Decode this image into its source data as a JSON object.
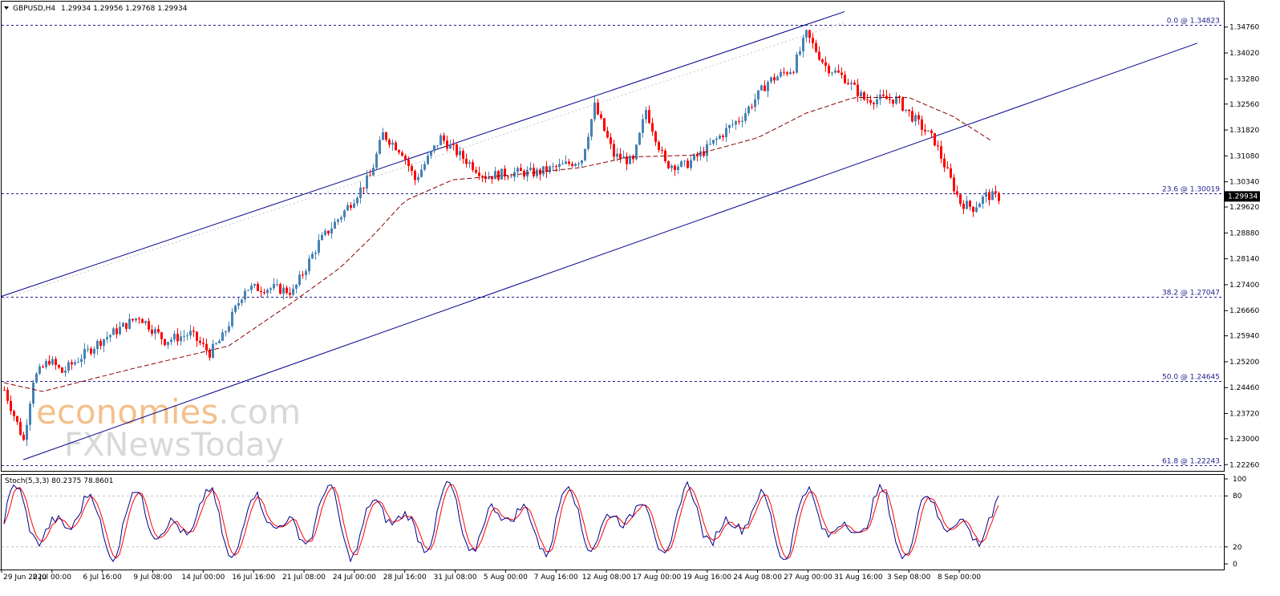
{
  "header": {
    "symbol": "GBPUSD,H4",
    "ohlc": "1.29934 1.29956 1.29768 1.29934"
  },
  "stoch_header": {
    "label": "Stoch(5,3,3) 80.2375 78.8601"
  },
  "price_axis": {
    "ticks": [
      "1.34760",
      "1.34020",
      "1.33280",
      "1.32560",
      "1.31820",
      "1.31080",
      "1.30340",
      "1.29620",
      "1.28880",
      "1.28140",
      "1.27400",
      "1.26660",
      "1.25940",
      "1.25200",
      "1.24460",
      "1.23720",
      "1.23000",
      "1.22260"
    ],
    "current_price": "1.29934"
  },
  "stoch_axis": {
    "ticks": [
      "100",
      "80",
      "20",
      "0"
    ]
  },
  "time_axis": {
    "labels": [
      "29 Jun 2020",
      "2 Jul 00:00",
      "6 Jul 16:00",
      "9 Jul 08:00",
      "14 Jul 00:00",
      "16 Jul 16:00",
      "21 Jul 08:00",
      "24 Jul 00:00",
      "28 Jul 16:00",
      "31 Jul 08:00",
      "5 Aug 00:00",
      "7 Aug 16:00",
      "12 Aug 08:00",
      "17 Aug 00:00",
      "19 Aug 16:00",
      "24 Aug 08:00",
      "27 Aug 00:00",
      "31 Aug 16:00",
      "3 Sep 08:00",
      "8 Sep 00:00"
    ]
  },
  "fib_levels": [
    {
      "label": "0.0 @ 1.34823",
      "value": 1.34823
    },
    {
      "label": "23.6 @ 1.30019",
      "value": 1.30019
    },
    {
      "label": "38.2 @ 1.27047",
      "value": 1.27047
    },
    {
      "label": "50.0 @ 1.24645",
      "value": 1.24645
    },
    {
      "label": "61.8 @ 1.22243",
      "value": 1.22243
    }
  ],
  "watermark": {
    "line1_a": "econo",
    "line1_b": "mies",
    "line1_c": ".com",
    "line2": "FXNewsToday"
  },
  "colors": {
    "bull": "#4682b4",
    "bear": "#ff0000",
    "ma": "#8b0000",
    "channel": "#00008b",
    "fib": "#1f1f8f",
    "stoch_main": "#00008b",
    "stoch_signal": "#ff0000",
    "wm_orange": "#f4c08c",
    "wm_grey": "#d8d8d8"
  },
  "chart_data": {
    "type": "candlestick",
    "symbol": "GBPUSD",
    "timeframe": "H4",
    "ylim": [
      1.2226,
      1.3506
    ],
    "anchors": [
      [
        0,
        1.244
      ],
      [
        6,
        1.2295
      ],
      [
        9,
        1.247
      ],
      [
        14,
        1.2525
      ],
      [
        18,
        1.249
      ],
      [
        30,
        1.258
      ],
      [
        42,
        1.265
      ],
      [
        50,
        1.258
      ],
      [
        58,
        1.26
      ],
      [
        64,
        1.2545
      ],
      [
        68,
        1.259
      ],
      [
        75,
        1.273
      ],
      [
        84,
        1.273
      ],
      [
        90,
        1.272
      ],
      [
        98,
        1.286
      ],
      [
        106,
        1.295
      ],
      [
        114,
        1.305
      ],
      [
        118,
        1.317
      ],
      [
        124,
        1.312
      ],
      [
        128,
        1.304
      ],
      [
        136,
        1.316
      ],
      [
        142,
        1.311
      ],
      [
        150,
        1.305
      ],
      [
        158,
        1.306
      ],
      [
        166,
        1.306
      ],
      [
        174,
        1.308
      ],
      [
        180,
        1.31
      ],
      [
        184,
        1.325
      ],
      [
        190,
        1.311
      ],
      [
        196,
        1.309
      ],
      [
        200,
        1.324
      ],
      [
        206,
        1.3085
      ],
      [
        212,
        1.308
      ],
      [
        218,
        1.312
      ],
      [
        226,
        1.319
      ],
      [
        230,
        1.322
      ],
      [
        238,
        1.332
      ],
      [
        246,
        1.336
      ],
      [
        250,
        1.3455
      ],
      [
        256,
        1.3365
      ],
      [
        262,
        1.333
      ],
      [
        268,
        1.327
      ],
      [
        278,
        1.327
      ],
      [
        286,
        1.319
      ],
      [
        290,
        1.315
      ],
      [
        294,
        1.306
      ],
      [
        298,
        1.2975
      ],
      [
        302,
        1.296
      ],
      [
        306,
        1.2995
      ],
      [
        310,
        1.299
      ]
    ],
    "ma_series": [
      [
        0,
        1.246
      ],
      [
        12,
        1.2435
      ],
      [
        40,
        1.25
      ],
      [
        70,
        1.2565
      ],
      [
        90,
        1.269
      ],
      [
        105,
        1.279
      ],
      [
        115,
        1.288
      ],
      [
        125,
        1.298
      ],
      [
        140,
        1.304
      ],
      [
        160,
        1.3055
      ],
      [
        180,
        1.3075
      ],
      [
        195,
        1.3105
      ],
      [
        215,
        1.311
      ],
      [
        235,
        1.316
      ],
      [
        250,
        1.323
      ],
      [
        265,
        1.3275
      ],
      [
        282,
        1.3275
      ],
      [
        296,
        1.322
      ],
      [
        308,
        1.315
      ]
    ],
    "channel_upper": [
      [
        -1,
        1.2706
      ],
      [
        262,
        1.352
      ]
    ],
    "channel_lower": [
      [
        6,
        1.224
      ],
      [
        372,
        1.343
      ]
    ],
    "stoch_ylim": [
      0,
      100
    ],
    "stoch_levels": [
      80,
      20
    ]
  }
}
